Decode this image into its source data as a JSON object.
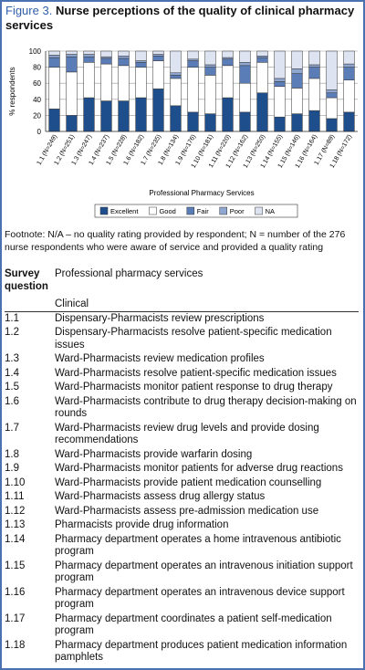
{
  "figure": {
    "label": "Figure 3.",
    "title": "Nurse perceptions of the quality of clinical pharmacy services"
  },
  "chart_data": {
    "type": "stacked-bar",
    "y_label": "% respondents",
    "x_label": "Professional Pharmacy Services",
    "categories": [
      "1.1 (N=249)",
      "1.2 (N=251)",
      "1.3 (N=247)",
      "1.4 (N=237)",
      "1.5 (N=228)",
      "1.6 (N=182)",
      "1.7 (N=235)",
      "1.8 (N=134)",
      "1.9 (N=176)",
      "1.10 (N=181)",
      "1.11 (N=220)",
      "1.12 (N=162)",
      "1.13 (N=250)",
      "1.14 (N=155)",
      "1.15 (N=146)",
      "1.16 (N=164)",
      "1.17 (N=89)",
      "1.18 (N=172)"
    ],
    "series": [
      {
        "name": "Excellent",
        "color": "#1f4e8c",
        "values": [
          28,
          20,
          42,
          38,
          38,
          42,
          53,
          32,
          24,
          22,
          42,
          24,
          48,
          18,
          22,
          26,
          16,
          24
        ]
      },
      {
        "name": "Good",
        "color": "#ffffff",
        "values": [
          52,
          54,
          44,
          46,
          44,
          38,
          35,
          34,
          56,
          48,
          40,
          36,
          38,
          38,
          32,
          40,
          26,
          40
        ]
      },
      {
        "name": "Fair",
        "color": "#5a7db8",
        "values": [
          12,
          19,
          7,
          7,
          9,
          6,
          6,
          4,
          8,
          10,
          8,
          22,
          6,
          6,
          18,
          14,
          6,
          16
        ]
      },
      {
        "name": "Poor",
        "color": "#8fa6d1",
        "values": [
          3,
          3,
          3,
          2,
          3,
          2,
          2,
          3,
          2,
          3,
          2,
          4,
          2,
          4,
          6,
          3,
          4,
          4
        ]
      },
      {
        "name": "NA",
        "color": "#dde3f0",
        "values": [
          5,
          4,
          4,
          7,
          6,
          12,
          4,
          27,
          10,
          17,
          8,
          14,
          6,
          34,
          22,
          17,
          48,
          16
        ]
      }
    ],
    "ylim": [
      0,
      100
    ],
    "yticks": [
      0,
      20,
      40,
      60,
      80,
      100
    ],
    "grid": true
  },
  "footnote": "Footnote: N/A – no quality rating provided by respondent; N = number of the 276 nurse respondents who were aware of service and provided a quality rating",
  "table": {
    "headers": [
      "Survey question",
      "Professional pharmacy services"
    ],
    "section": "Clinical",
    "rows": [
      [
        "1.1",
        "Dispensary-Pharmacists review prescriptions"
      ],
      [
        "1.2",
        "Dispensary-Pharmacists resolve patient-specific medication issues"
      ],
      [
        "1.3",
        "Ward-Pharmacists review medication profiles"
      ],
      [
        "1.4",
        "Ward-Pharmacists resolve patient-specific medication issues"
      ],
      [
        "1.5",
        "Ward-Pharmacists monitor patient response to drug therapy"
      ],
      [
        "1.6",
        "Ward-Pharmacists contribute to drug therapy decision-making on rounds"
      ],
      [
        "1.7",
        "Ward-Pharmacists review drug levels and provide dosing recommendations"
      ],
      [
        "1.8",
        "Ward-Pharmacists provide warfarin dosing"
      ],
      [
        "1.9",
        "Ward-Pharmacists monitor patients for adverse drug reactions"
      ],
      [
        "1.10",
        "Ward-Pharmacists provide patient medication counselling"
      ],
      [
        "1.11",
        "Ward-Pharmacists assess drug allergy status"
      ],
      [
        "1.12",
        "Ward-Pharmacists assess pre-admission medication use"
      ],
      [
        "1.13",
        "Pharmacists provide drug information"
      ],
      [
        "1.14",
        "Pharmacy department operates a home intravenous antibiotic program"
      ],
      [
        "1.15",
        "Pharmacy department operates an intravenous initiation support program"
      ],
      [
        "1.16",
        "Pharmacy department operates an intravenous device support program"
      ],
      [
        "1.17",
        "Pharmacy department coordinates a patient self-medication program"
      ],
      [
        "1.18",
        "Pharmacy department produces patient medication information pamphlets"
      ]
    ]
  }
}
